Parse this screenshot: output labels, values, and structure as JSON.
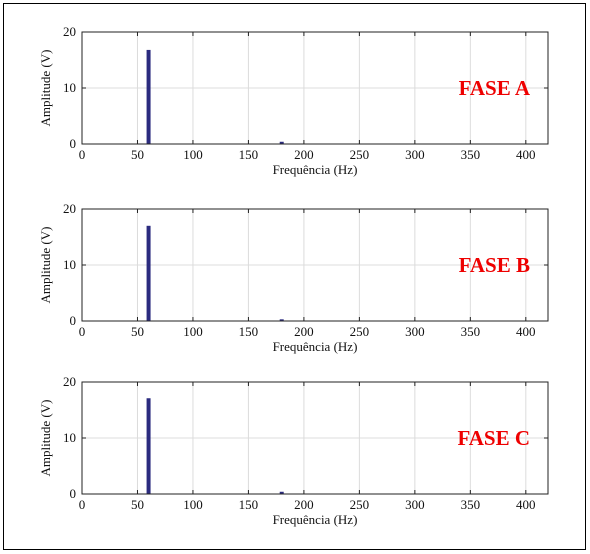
{
  "chart_data": [
    {
      "type": "bar",
      "annotation": "FASE A",
      "xlabel": "Frequência (Hz)",
      "ylabel": "Amplitude (V)",
      "xlim": [
        0,
        420
      ],
      "ylim": [
        0,
        20
      ],
      "xticks": [
        "0",
        "50",
        "100",
        "150",
        "200",
        "250",
        "300",
        "350",
        "400"
      ],
      "yticks": [
        "0",
        "10",
        "20"
      ],
      "grid": true,
      "bars": [
        {
          "x": 60,
          "y": 16.8
        },
        {
          "x": 180,
          "y": 0.4
        }
      ],
      "colors": {
        "bars": "#2b2b7f",
        "annotation": "#ee0000"
      }
    },
    {
      "type": "bar",
      "annotation": "FASE B",
      "xlabel": "Frequência (Hz)",
      "ylabel": "Amplitude (V)",
      "xlim": [
        0,
        420
      ],
      "ylim": [
        0,
        20
      ],
      "xticks": [
        "0",
        "50",
        "100",
        "150",
        "200",
        "250",
        "300",
        "350",
        "400"
      ],
      "yticks": [
        "0",
        "10",
        "20"
      ],
      "grid": true,
      "bars": [
        {
          "x": 60,
          "y": 17.0
        },
        {
          "x": 180,
          "y": 0.3
        }
      ],
      "colors": {
        "bars": "#2b2b7f",
        "annotation": "#ee0000"
      }
    },
    {
      "type": "bar",
      "annotation": "FASE C",
      "xlabel": "Frequência (Hz)",
      "ylabel": "Amplitude (V)",
      "xlim": [
        0,
        420
      ],
      "ylim": [
        0,
        20
      ],
      "xticks": [
        "0",
        "50",
        "100",
        "150",
        "200",
        "250",
        "300",
        "350",
        "400"
      ],
      "yticks": [
        "0",
        "10",
        "20"
      ],
      "grid": true,
      "bars": [
        {
          "x": 60,
          "y": 17.1
        },
        {
          "x": 180,
          "y": 0.4
        }
      ],
      "colors": {
        "bars": "#2b2b7f",
        "annotation": "#ee0000"
      }
    }
  ]
}
